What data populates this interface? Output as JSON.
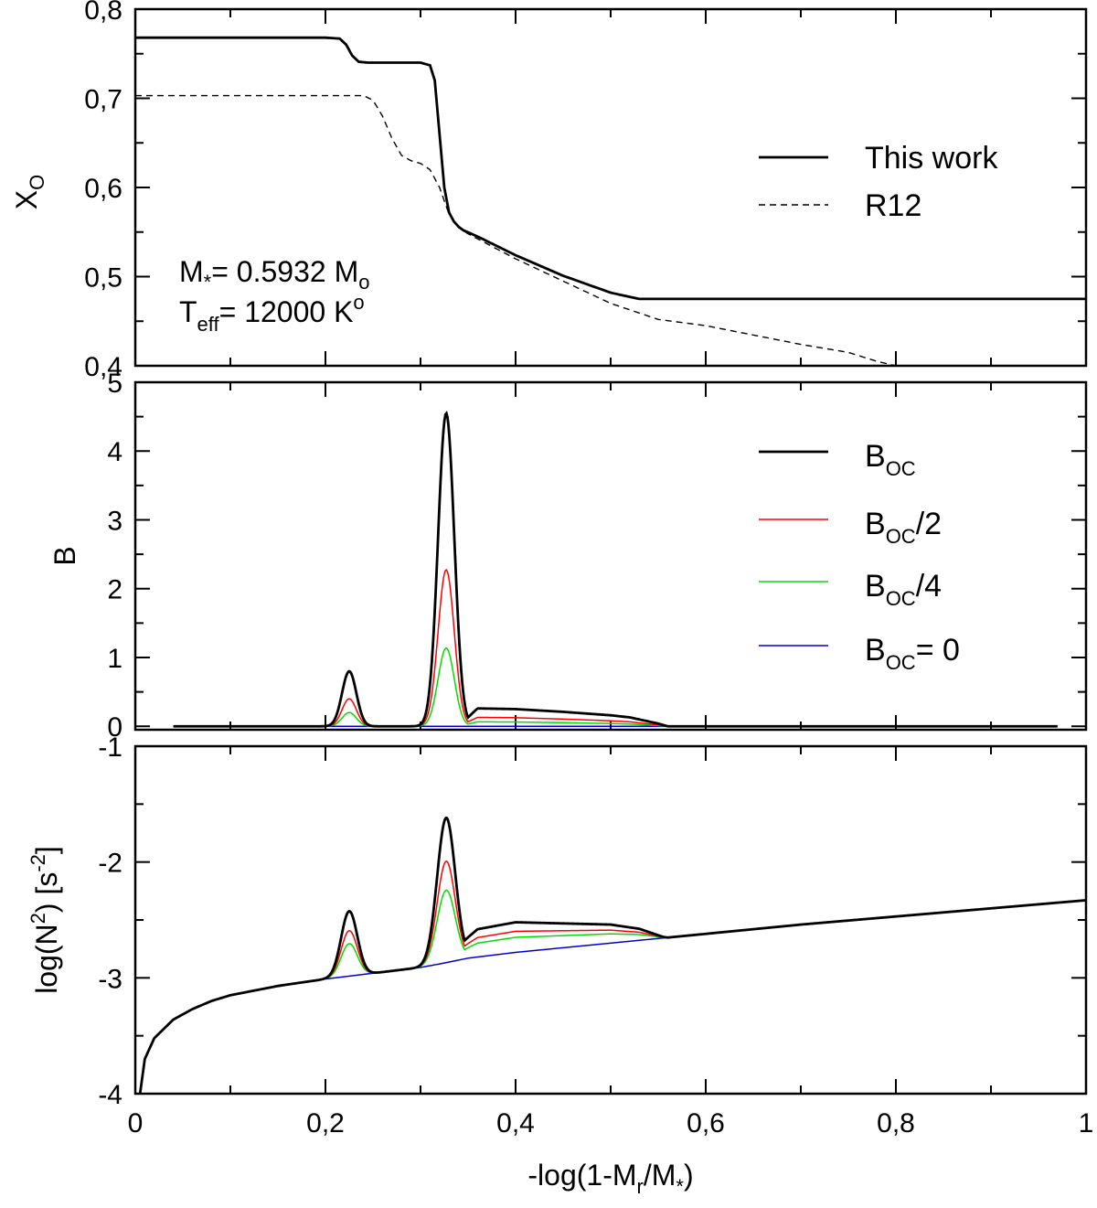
{
  "chart_data": [
    {
      "type": "line",
      "panel": "top",
      "ylabel_main": "X",
      "ylabel_sub": "O",
      "ylim": [
        0.4,
        0.8
      ],
      "xlim": [
        0,
        1
      ],
      "yticks": [
        "0,4",
        "0,5",
        "0,6",
        "0,7",
        "0,8"
      ],
      "annotation_mass": {
        "pre": "M",
        "pre_sub": "*",
        "mid": "= 0.5932 M",
        "post_sub": "o"
      },
      "annotation_teff": {
        "pre": "T",
        "pre_sub": "eff",
        "mid": "= 12000 K",
        "post_sup": "o"
      },
      "legend_position": "right",
      "series": [
        {
          "name": "This work",
          "color": "#000000",
          "style": "solid",
          "x": [
            0,
            0.2,
            0.215,
            0.222,
            0.228,
            0.235,
            0.245,
            0.3,
            0.31,
            0.315,
            0.32,
            0.325,
            0.33,
            0.335,
            0.34,
            0.345,
            0.36,
            0.4,
            0.45,
            0.5,
            0.53,
            0.55,
            0.6,
            0.8,
            1.0
          ],
          "y": [
            0.768,
            0.768,
            0.767,
            0.76,
            0.748,
            0.741,
            0.74,
            0.74,
            0.737,
            0.72,
            0.66,
            0.6,
            0.572,
            0.562,
            0.556,
            0.552,
            0.545,
            0.524,
            0.501,
            0.482,
            0.475,
            0.475,
            0.475,
            0.475,
            0.475
          ]
        },
        {
          "name": "R12",
          "color": "#000000",
          "style": "dashed",
          "x": [
            0,
            0.24,
            0.25,
            0.26,
            0.27,
            0.28,
            0.29,
            0.3,
            0.31,
            0.32,
            0.325,
            0.33,
            0.34,
            0.35,
            0.4,
            0.5,
            0.55,
            0.6,
            0.7,
            0.75,
            0.78,
            0.8
          ],
          "y": [
            0.703,
            0.703,
            0.698,
            0.68,
            0.655,
            0.636,
            0.63,
            0.627,
            0.62,
            0.6,
            0.585,
            0.57,
            0.555,
            0.548,
            0.52,
            0.47,
            0.452,
            0.445,
            0.424,
            0.415,
            0.405,
            0.4
          ]
        }
      ]
    },
    {
      "type": "line",
      "panel": "middle",
      "ylabel": "B",
      "ylim": [
        -0.05,
        5
      ],
      "xlim": [
        0,
        1
      ],
      "yticks": [
        "0",
        "1",
        "2",
        "3",
        "4",
        "5"
      ],
      "legend_position": "right",
      "legend": [
        {
          "main": "B",
          "sub": "OC",
          "tail": "",
          "color": "#000000"
        },
        {
          "main": "B",
          "sub": "OC",
          "tail": "/2",
          "color": "#ff0000"
        },
        {
          "main": "B",
          "sub": "OC",
          "tail": "/4",
          "color": "#00dd00"
        },
        {
          "main": "B",
          "sub": "OC",
          "tail": "= 0",
          "color": "#0000cc"
        }
      ],
      "peaks": [
        {
          "center": 0.225,
          "width": 0.0075,
          "height": 0.8
        },
        {
          "center": 0.327,
          "width": 0.0085,
          "height": 4.55
        }
      ],
      "plateau": {
        "x": [
          0.36,
          0.4,
          0.45,
          0.5,
          0.52,
          0.55,
          0.56
        ],
        "y": [
          0.26,
          0.25,
          0.21,
          0.16,
          0.13,
          0.04,
          0.0
        ]
      },
      "series": [
        {
          "name": "B_OC",
          "color": "#000000",
          "scale": 1.0
        },
        {
          "name": "B_OC/2",
          "color": "#ff0000",
          "scale": 0.5
        },
        {
          "name": "B_OC/4",
          "color": "#00dd00",
          "scale": 0.25
        },
        {
          "name": "B_OC= 0",
          "color": "#0000cc",
          "scale": 0.0
        }
      ]
    },
    {
      "type": "line",
      "panel": "bottom",
      "ylabel_main": "log(N",
      "ylabel_sup": "2",
      "ylabel_mid": ") [s",
      "ylabel_sup2": "-2",
      "ylabel_end": "]",
      "ylim": [
        -4,
        -1
      ],
      "xlim": [
        0,
        1
      ],
      "yticks": [
        "-4",
        "-3",
        "-2",
        "-1"
      ],
      "xticks": [
        "0",
        "0,2",
        "0,4",
        "0,6",
        "0,8",
        "1"
      ],
      "xlabel_pre": "-log(1-M",
      "xlabel_sub": "r",
      "xlabel_post": "/M",
      "xlabel_sub2": "*",
      "xlabel_end": ")",
      "base_curve": {
        "x": [
          0.005,
          0.01,
          0.02,
          0.04,
          0.06,
          0.08,
          0.1,
          0.15,
          0.2,
          0.25,
          0.3,
          0.32,
          0.35,
          0.4,
          0.45,
          0.5,
          0.55,
          0.6,
          0.7,
          0.8,
          0.9,
          1.0
        ],
        "y": [
          -4.0,
          -3.7,
          -3.52,
          -3.36,
          -3.27,
          -3.2,
          -3.15,
          -3.07,
          -3.01,
          -2.96,
          -2.91,
          -2.88,
          -2.83,
          -2.78,
          -2.74,
          -2.7,
          -2.66,
          -2.62,
          -2.54,
          -2.47,
          -2.4,
          -2.33
        ]
      },
      "bump_peaks": [
        {
          "center": 0.225,
          "width": 0.0085,
          "height": 0.56
        },
        {
          "center": 0.327,
          "width": 0.0095,
          "height": 1.25
        }
      ],
      "bump_plateau": {
        "x": [
          0.32,
          0.36,
          0.4,
          0.45,
          0.5,
          0.53,
          0.555,
          0.56
        ],
        "y": [
          0.0,
          0.24,
          0.26,
          0.21,
          0.16,
          0.1,
          0.01,
          0.0
        ]
      },
      "series": [
        {
          "name": "B_OC",
          "color": "#000000",
          "scale": 1.0
        },
        {
          "name": "B_OC/2",
          "color": "#ff0000",
          "scale": 0.7
        },
        {
          "name": "B_OC/4",
          "color": "#00dd00",
          "scale": 0.5
        },
        {
          "name": "B_OC= 0",
          "color": "#0000cc",
          "scale": 0.0
        }
      ]
    }
  ]
}
